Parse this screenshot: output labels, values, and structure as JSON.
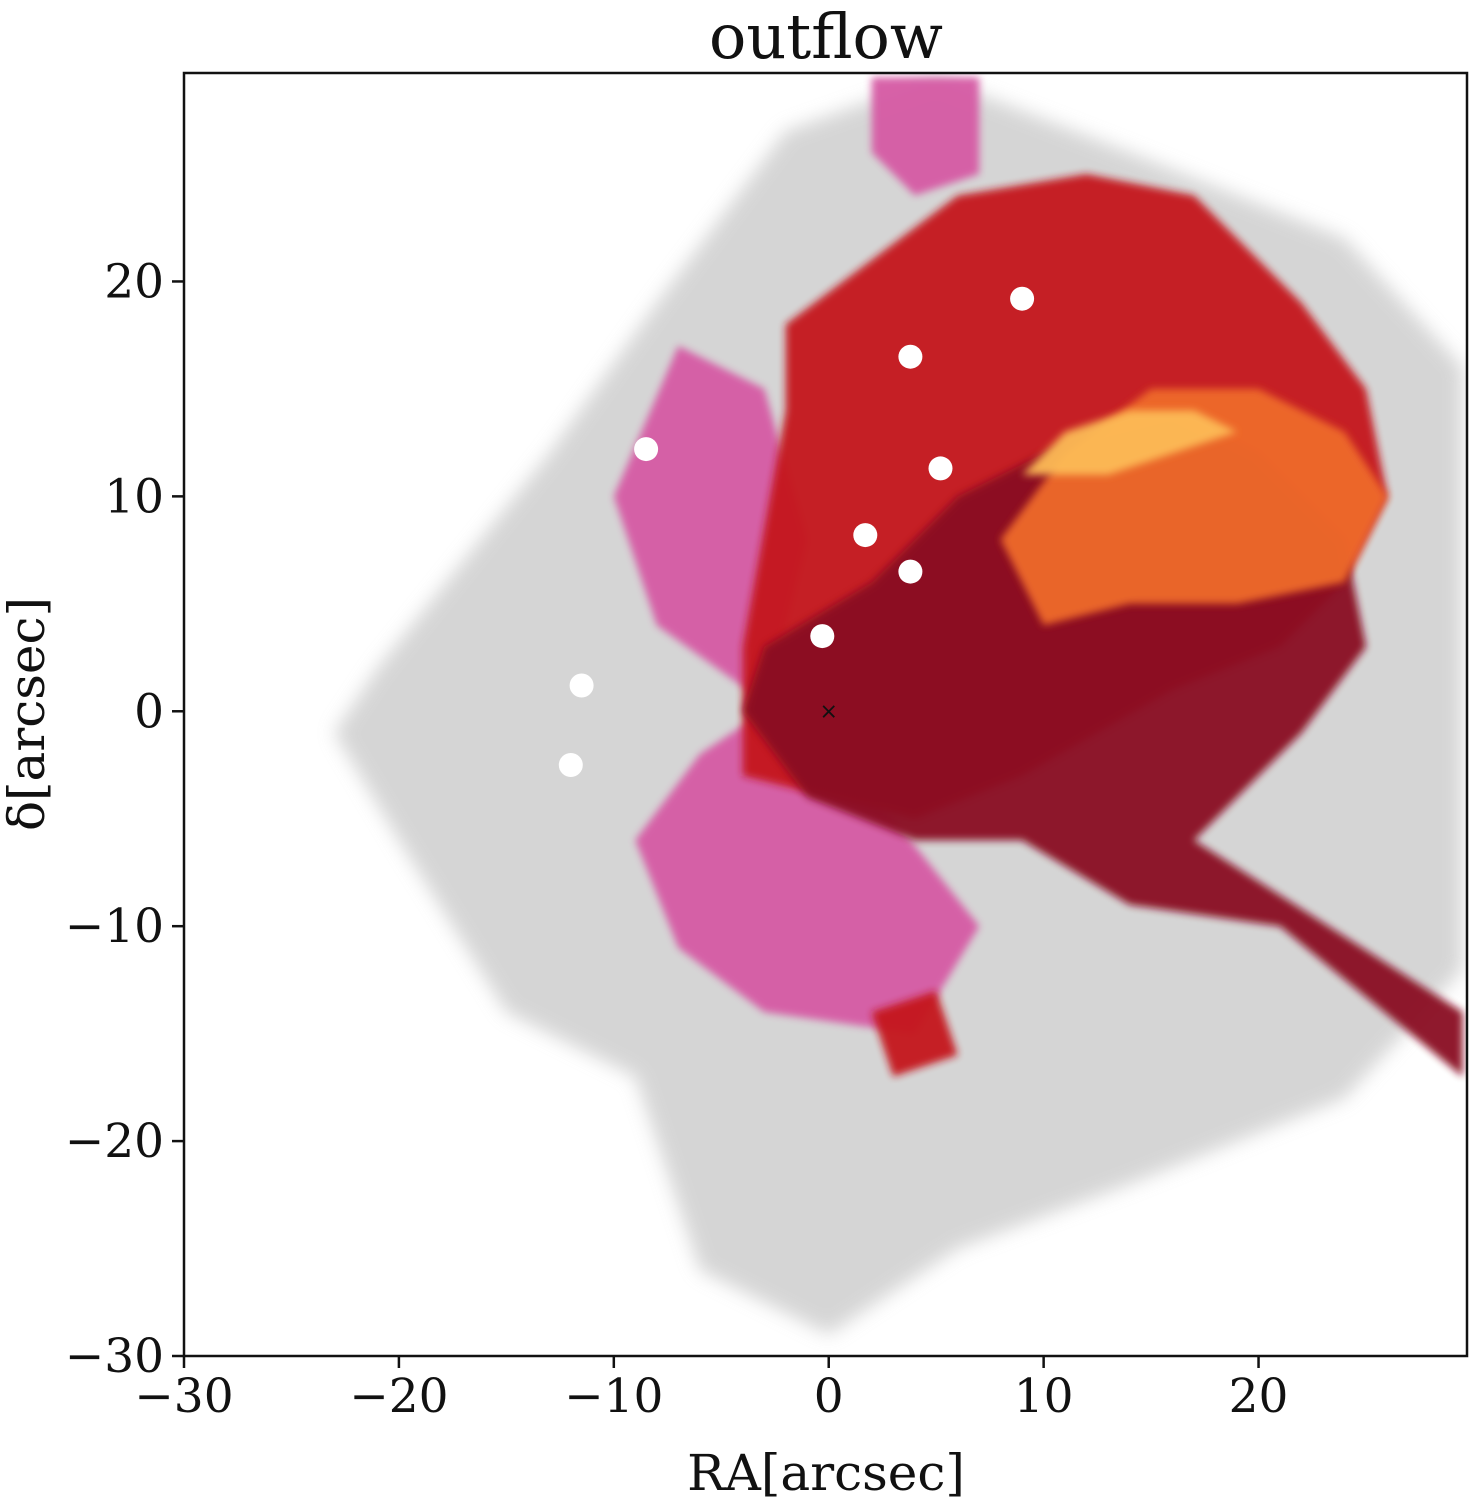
{
  "chart_data": {
    "type": "heatmap",
    "title": "outflow",
    "xlabel": "RA[arcsec]",
    "ylabel": "δ[arcsec]",
    "xlim": [
      -30,
      29.7
    ],
    "ylim": [
      -30,
      29.7
    ],
    "xticks": [
      -30,
      -20,
      -10,
      0,
      10,
      20
    ],
    "yticks": [
      -30,
      -20,
      -10,
      0,
      10,
      20
    ],
    "xtick_labels": [
      "−30",
      "−20",
      "−10",
      "0",
      "10",
      "20"
    ],
    "ytick_labels": [
      "−30",
      "−20",
      "−10",
      "0",
      "10",
      "20"
    ],
    "grid": false,
    "legend": "none",
    "center_marker": {
      "x": 0,
      "y": 0,
      "symbol": "×"
    },
    "colors": {
      "background": "#ffffff",
      "galaxy_gray": "#c8c8c8",
      "outflow_dark": "#8a0b22",
      "outflow_red": "#c5161e",
      "outflow_orange": "#ef6a2a",
      "outflow_yellow": "#fdbb57",
      "blue_side_pink": "#d65aa4",
      "blue_side_light": "#9cc3de"
    },
    "regions": [
      {
        "name": "gray-disk",
        "color": "#c8c8c8",
        "points": [
          [
            -21,
            2
          ],
          [
            -13,
            12
          ],
          [
            -8,
            19
          ],
          [
            -2,
            27
          ],
          [
            5,
            29.5
          ],
          [
            14,
            26
          ],
          [
            24,
            22
          ],
          [
            29.5,
            16
          ],
          [
            29.5,
            -12
          ],
          [
            24,
            -18
          ],
          [
            14,
            -22
          ],
          [
            6,
            -25
          ],
          [
            0,
            -29
          ],
          [
            -6,
            -26
          ],
          [
            -9,
            -17
          ],
          [
            -15,
            -14
          ],
          [
            -20,
            -6
          ],
          [
            -23,
            -1
          ]
        ]
      },
      {
        "name": "blue-side",
        "color": "#d65aa4",
        "points": [
          [
            -7,
            17
          ],
          [
            -3,
            15
          ],
          [
            -1,
            8
          ],
          [
            -3,
            0
          ],
          [
            -6,
            -2
          ],
          [
            -9,
            -6
          ],
          [
            -7,
            -11
          ],
          [
            -3,
            -14
          ],
          [
            4,
            -15
          ],
          [
            7,
            -10
          ],
          [
            3,
            -5
          ],
          [
            -1,
            -1
          ],
          [
            -8,
            4
          ],
          [
            -10,
            10
          ]
        ]
      },
      {
        "name": "red-outflow-core",
        "color": "#c5161e",
        "points": [
          [
            -4,
            3
          ],
          [
            -2,
            14
          ],
          [
            -2,
            18
          ],
          [
            2,
            21
          ],
          [
            6,
            24
          ],
          [
            12,
            25
          ],
          [
            17,
            24
          ],
          [
            22,
            19
          ],
          [
            25,
            15
          ],
          [
            26,
            10
          ],
          [
            24,
            6
          ],
          [
            21,
            3
          ],
          [
            16,
            1
          ],
          [
            9,
            -3
          ],
          [
            4,
            -5
          ],
          [
            -4,
            -3
          ]
        ]
      },
      {
        "name": "red-outflow-dark",
        "color": "#8a0b22",
        "points": [
          [
            -3,
            3
          ],
          [
            2,
            6
          ],
          [
            6,
            10
          ],
          [
            12,
            13
          ],
          [
            16,
            14
          ],
          [
            20,
            12
          ],
          [
            24,
            8
          ],
          [
            25,
            3
          ],
          [
            22,
            -1
          ],
          [
            17,
            -6
          ],
          [
            29.5,
            -14
          ],
          [
            29.5,
            -17
          ],
          [
            21,
            -10
          ],
          [
            14,
            -9
          ],
          [
            9,
            -6
          ],
          [
            4,
            -6
          ],
          [
            -1,
            -4
          ],
          [
            -4,
            0
          ]
        ]
      },
      {
        "name": "orange-lobe",
        "color": "#ef6a2a",
        "points": [
          [
            8,
            8
          ],
          [
            11,
            12
          ],
          [
            15,
            15
          ],
          [
            20,
            15
          ],
          [
            24,
            13
          ],
          [
            26,
            10
          ],
          [
            24,
            6
          ],
          [
            19,
            5
          ],
          [
            14,
            5
          ],
          [
            10,
            4
          ]
        ]
      },
      {
        "name": "yellow-lobe",
        "color": "#fdbb57",
        "points": [
          [
            9,
            11
          ],
          [
            11,
            13
          ],
          [
            14,
            14
          ],
          [
            17,
            14
          ],
          [
            19,
            13
          ],
          [
            16,
            12
          ],
          [
            13,
            11
          ]
        ]
      },
      {
        "name": "pink-top-plume",
        "color": "#d65aa4",
        "points": [
          [
            2,
            29.5
          ],
          [
            7,
            29.5
          ],
          [
            7,
            25
          ],
          [
            4,
            24
          ],
          [
            2,
            26
          ]
        ]
      },
      {
        "name": "south-red-blob",
        "color": "#c5161e",
        "points": [
          [
            2,
            -14
          ],
          [
            5,
            -13
          ],
          [
            6,
            -16
          ],
          [
            3,
            -17
          ]
        ]
      }
    ],
    "masked_holes": [
      [
        3.8,
        16.5
      ],
      [
        1.7,
        8.2
      ],
      [
        3.8,
        6.5
      ],
      [
        -0.3,
        3.5
      ],
      [
        5.2,
        11.3
      ],
      [
        9,
        19.2
      ],
      [
        -11.5,
        1.2
      ],
      [
        -8.5,
        12.2
      ],
      [
        -12,
        -2.5
      ]
    ]
  }
}
